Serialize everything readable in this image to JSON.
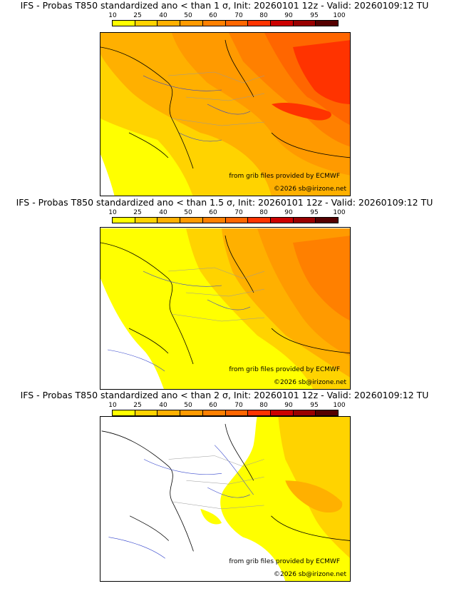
{
  "scale": {
    "labels": [
      "10",
      "25",
      "40",
      "50",
      "60",
      "70",
      "80",
      "90",
      "95",
      "100"
    ],
    "colors": [
      "#ffff00",
      "#ffd300",
      "#ffb000",
      "#ff9a00",
      "#ff8000",
      "#ff6600",
      "#ff3300",
      "#cc0000",
      "#990000",
      "#550000"
    ]
  },
  "credits": {
    "source": "from grib files provided by ECMWF",
    "copyright": "©2026 sb@irizone.net"
  },
  "panels": [
    {
      "title": "IFS - Probas T850  standardized ano < than 1 σ, Init: 20260101 12z - Valid: 20260109:12 TU",
      "threshold_sigma": 1
    },
    {
      "title": "IFS - Probas T850  standardized ano < than 1.5 σ, Init: 20260101 12z - Valid: 20260109:12 TU",
      "threshold_sigma": 1.5
    },
    {
      "title": "IFS - Probas T850  standardized ano < than 2 σ, Init: 20260101 12z - Valid: 20260109:12 TU",
      "threshold_sigma": 2
    }
  ]
}
